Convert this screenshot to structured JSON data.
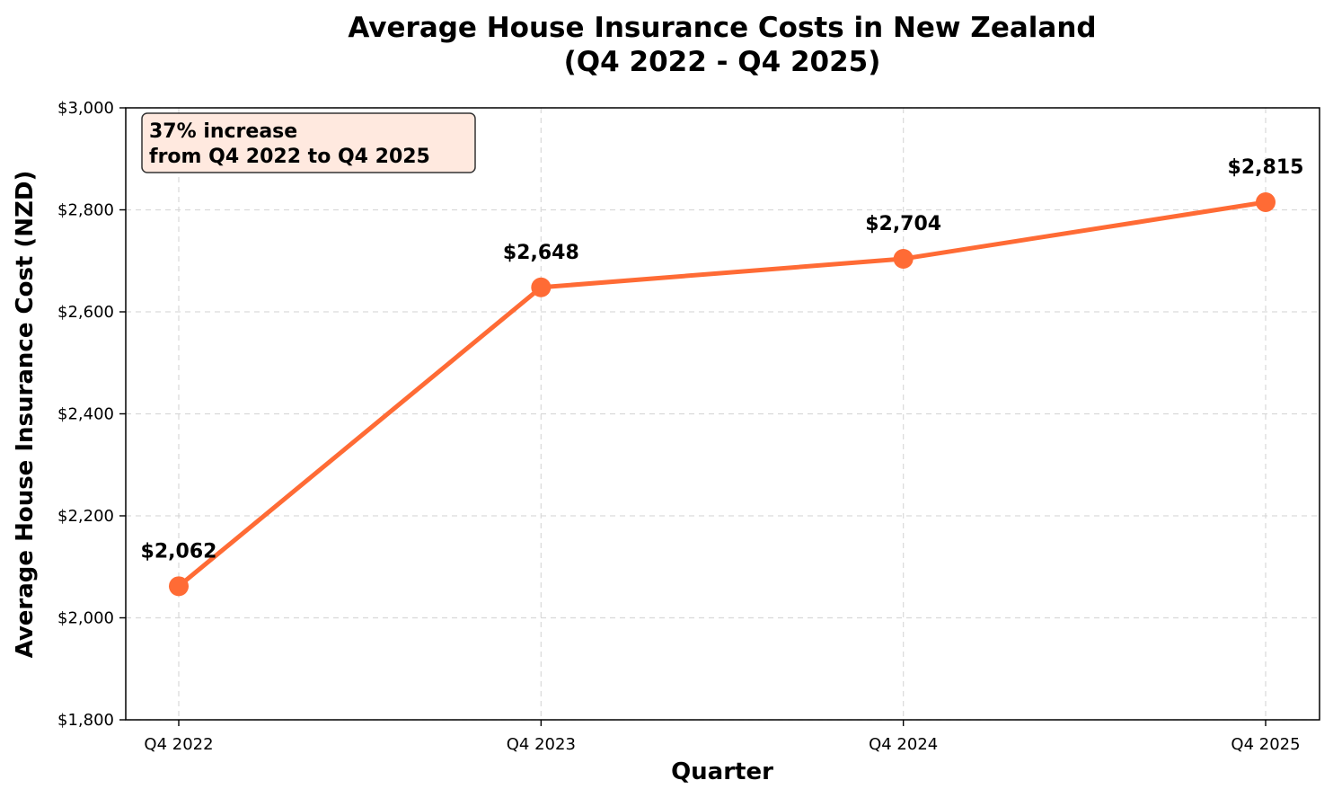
{
  "chart_data": {
    "type": "line",
    "title": [
      "Average House Insurance Costs in New Zealand",
      "(Q4 2022 - Q4 2025)"
    ],
    "xlabel": "Quarter",
    "ylabel": "Average House Insurance Cost (NZD)",
    "categories": [
      "Q4 2022",
      "Q4 2023",
      "Q4 2024",
      "Q4 2025"
    ],
    "series": [
      {
        "values": [
          2062,
          2648,
          2704,
          2815
        ],
        "data_labels": [
          "$2,062",
          "$2,648",
          "$2,704",
          "$2,815"
        ],
        "color": "#ff6b35"
      }
    ],
    "ylim": [
      1800,
      3000
    ],
    "yticks": [
      1800,
      2000,
      2200,
      2400,
      2600,
      2800,
      3000
    ],
    "ytick_labels": [
      "$1,800",
      "$2,000",
      "$2,200",
      "$2,400",
      "$2,600",
      "$2,800",
      "$3,000"
    ],
    "grid": true,
    "annotation": {
      "lines": [
        "37% increase",
        "from Q4 2022 to Q4 2025"
      ],
      "placement": "top-left",
      "background": "#ffe9df",
      "border": "#333333"
    }
  }
}
